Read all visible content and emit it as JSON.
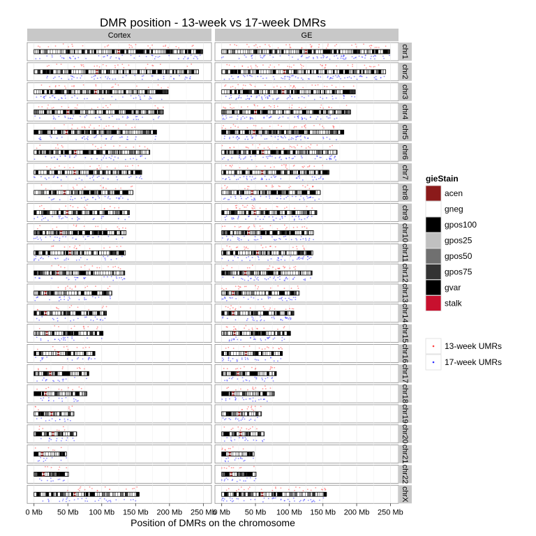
{
  "chart_data": {
    "type": "scatter",
    "title": "DMR position - 13-week vs 17-week DMRs",
    "xlabel": "Position of DMRs on the chromosome",
    "ylabel": "",
    "x_ticks": [
      "0 Mb",
      "50 Mb",
      "100 Mb",
      "150 Mb",
      "200 Mb",
      "250 Mb"
    ],
    "x_tick_values": [
      0,
      50,
      100,
      150,
      200,
      250
    ],
    "xlim": [
      -10,
      262
    ],
    "facets_columns": [
      "Cortex",
      "GE"
    ],
    "facets_rows": [
      "chr1",
      "chr2",
      "chr3",
      "chr4",
      "chr5",
      "chr6",
      "chr7",
      "chr8",
      "chr9",
      "chr10",
      "chr11",
      "chr12",
      "chr13",
      "chr14",
      "chr15",
      "chr16",
      "chr17",
      "chr18",
      "chr19",
      "chr20",
      "chr21",
      "chr22",
      "chrX"
    ],
    "chromosome_length_mb": [
      249,
      243,
      198,
      191,
      181,
      171,
      159,
      146,
      141,
      136,
      135,
      134,
      115,
      107,
      102,
      90,
      81,
      78,
      59,
      63,
      48,
      51,
      155
    ],
    "centromere_mb": [
      125,
      93,
      91,
      50,
      48,
      61,
      60,
      45,
      49,
      40,
      53,
      35,
      17,
      17,
      19,
      36,
      24,
      17,
      26,
      28,
      12,
      14,
      60
    ],
    "legend_stain": {
      "title": "gieStain",
      "items": [
        {
          "label": "acen",
          "color": "#8B1A1A"
        },
        {
          "label": "gneg",
          "color": "#FFFFFF"
        },
        {
          "label": "gpos100",
          "color": "#000000"
        },
        {
          "label": "gpos25",
          "color": "#C0C0C0"
        },
        {
          "label": "gpos50",
          "color": "#707070"
        },
        {
          "label": "gpos75",
          "color": "#333333"
        },
        {
          "label": "gvar",
          "color": "#000000"
        },
        {
          "label": "stalk",
          "color": "#C8102E"
        }
      ]
    },
    "series": [
      {
        "name": "13-week UMRs",
        "color": "#FF4040",
        "position": "above ideogram"
      },
      {
        "name": "17-week UMRs",
        "color": "#3030FF",
        "position": "below ideogram"
      }
    ],
    "grid": true,
    "legend_position": "right"
  }
}
